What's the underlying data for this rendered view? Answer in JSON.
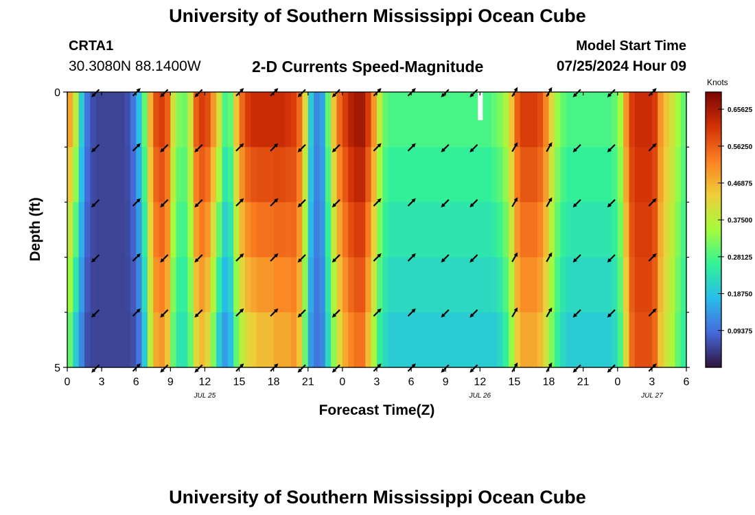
{
  "header": {
    "title": "University of Southern Mississippi Ocean Cube",
    "station_id": "CRTA1",
    "coordinates": "30.3080N  88.1400W",
    "plot_title": "2-D Currents Speed-Magnitude",
    "model_start_label": "Model Start Time",
    "model_start_time": "07/25/2024 Hour 09"
  },
  "footer": {
    "title": "University of Southern Mississippi Ocean Cube"
  },
  "chart_data": {
    "type": "heatmap",
    "title": "2-D Currents Speed-Magnitude",
    "xlabel": "Forecast Time(Z)",
    "ylabel": "Depth (ft)",
    "x_hours_range": [
      0,
      54
    ],
    "xlim": [
      0,
      54
    ],
    "ylim": [
      0,
      5
    ],
    "x_tick_hours": [
      0,
      3,
      6,
      9,
      12,
      15,
      18,
      21,
      24,
      27,
      30,
      33,
      36,
      39,
      42,
      45,
      48,
      51,
      54
    ],
    "x_tick_labels": [
      "0",
      "3",
      "6",
      "9",
      "12",
      "15",
      "18",
      "21",
      "0",
      "3",
      "6",
      "9",
      "12",
      "15",
      "18",
      "21",
      "0",
      "3",
      "6"
    ],
    "y_tick_values": [
      0,
      5
    ],
    "y_tick_labels": [
      "0",
      "5"
    ],
    "y_minor_tick_values": [
      1,
      2,
      3,
      4
    ],
    "date_labels": [
      {
        "hour": 12,
        "text": "JUL 25"
      },
      {
        "hour": 36,
        "text": "JUL 26"
      },
      {
        "hour": 51,
        "text": "JUL 27"
      }
    ],
    "depth_rows": 5,
    "speed_by_half_hour_surface": [
      0.48,
      0.38,
      0.2,
      0.1,
      0.06,
      0.05,
      0.05,
      0.05,
      0.05,
      0.05,
      0.06,
      0.1,
      0.18,
      0.3,
      0.47,
      0.58,
      0.6,
      0.56,
      0.4,
      0.32,
      0.31,
      0.4,
      0.56,
      0.6,
      0.58,
      0.5,
      0.4,
      0.28,
      0.3,
      0.45,
      0.55,
      0.6,
      0.62,
      0.62,
      0.62,
      0.62,
      0.62,
      0.62,
      0.61,
      0.6,
      0.55,
      0.42,
      0.2,
      0.12,
      0.15,
      0.3,
      0.45,
      0.55,
      0.6,
      0.64,
      0.66,
      0.66,
      0.6,
      0.5,
      0.38,
      0.3,
      0.28,
      0.28,
      0.28,
      0.28,
      0.28,
      0.28,
      0.28,
      0.28,
      0.28,
      0.28,
      0.28,
      0.28,
      0.28,
      0.28,
      0.28,
      0.28,
      0.28,
      0.28,
      0.3,
      0.32,
      0.36,
      0.45,
      0.56,
      0.6,
      0.6,
      0.6,
      0.58,
      0.52,
      0.42,
      0.34,
      0.3,
      0.28,
      0.28,
      0.28,
      0.28,
      0.28,
      0.28,
      0.28,
      0.28,
      0.3,
      0.35,
      0.5,
      0.6,
      0.62,
      0.62,
      0.62,
      0.6,
      0.5,
      0.45,
      0.4,
      0.35,
      0.3
    ],
    "speed_by_half_hour_bottom": [
      0.3,
      0.2,
      0.12,
      0.06,
      0.05,
      0.05,
      0.05,
      0.05,
      0.05,
      0.05,
      0.05,
      0.06,
      0.1,
      0.2,
      0.38,
      0.48,
      0.5,
      0.45,
      0.3,
      0.24,
      0.24,
      0.3,
      0.42,
      0.46,
      0.42,
      0.32,
      0.2,
      0.14,
      0.18,
      0.3,
      0.38,
      0.42,
      0.44,
      0.46,
      0.46,
      0.46,
      0.48,
      0.48,
      0.48,
      0.5,
      0.45,
      0.3,
      0.14,
      0.1,
      0.12,
      0.22,
      0.33,
      0.42,
      0.48,
      0.52,
      0.54,
      0.54,
      0.46,
      0.36,
      0.26,
      0.22,
      0.2,
      0.2,
      0.2,
      0.2,
      0.2,
      0.2,
      0.2,
      0.2,
      0.2,
      0.2,
      0.2,
      0.2,
      0.2,
      0.2,
      0.2,
      0.2,
      0.2,
      0.2,
      0.2,
      0.22,
      0.26,
      0.34,
      0.44,
      0.48,
      0.48,
      0.48,
      0.46,
      0.4,
      0.32,
      0.26,
      0.22,
      0.2,
      0.2,
      0.2,
      0.2,
      0.2,
      0.2,
      0.2,
      0.2,
      0.22,
      0.28,
      0.42,
      0.55,
      0.58,
      0.58,
      0.58,
      0.55,
      0.45,
      0.4,
      0.36,
      0.3,
      0.26
    ],
    "missing_cells": [
      {
        "hour": 36,
        "depth_row": 0
      }
    ],
    "vector_hours": [
      2.5,
      6,
      8.5,
      11.5,
      15,
      18,
      20.5,
      23.5,
      27,
      30,
      33,
      35.5,
      39,
      42,
      44.5,
      47.5,
      51
    ],
    "vector_depths_ft": [
      0,
      1,
      2,
      3,
      4,
      5
    ],
    "vector_direction_deg": [
      135,
      315,
      135,
      135,
      315,
      315,
      135,
      135,
      315,
      315,
      135,
      135,
      300,
      300,
      135,
      135,
      315
    ],
    "colorbar": {
      "label": "Knots",
      "range": [
        0.0,
        0.7
      ],
      "tick_values": [
        0.09375,
        0.1875,
        0.28125,
        0.375,
        0.46875,
        0.5625,
        0.65625
      ],
      "tick_labels": [
        "0.09375",
        "0.18750",
        "0.28125",
        "0.37500",
        "0.46875",
        "0.56250",
        "0.65625"
      ],
      "colormap": [
        "#30123b",
        "#4669db",
        "#28bceb",
        "#32f298",
        "#a4fc3c",
        "#eecf3a",
        "#fb8022",
        "#d23105",
        "#7a0403"
      ]
    }
  }
}
